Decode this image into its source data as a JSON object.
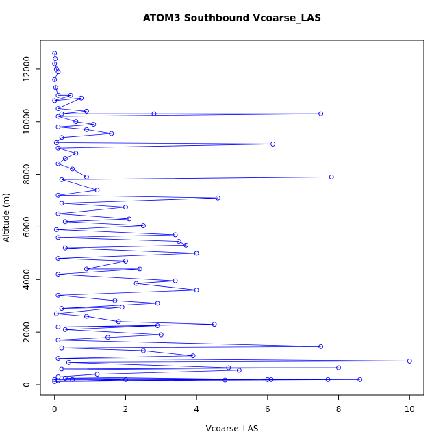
{
  "chart_data": {
    "type": "line",
    "title": "ATOM3 Southbound Vcoarse_LAS",
    "xlabel": "Vcoarse_LAS",
    "ylabel": "Altitude (m)",
    "color": "#0000ff",
    "marker": "circle",
    "x": [
      0,
      0.02,
      0,
      0.05,
      0.1,
      0,
      0.03,
      0.1,
      0.45,
      0,
      0.75,
      0.1,
      0.9,
      0.2,
      2.8,
      7.5,
      0.1,
      0.6,
      1.1,
      0.1,
      0.9,
      1.6,
      0.2,
      0.05,
      6.15,
      0.1,
      0.6,
      0.3,
      0.1,
      0.5,
      0.9,
      7.8,
      0.2,
      1.2,
      0.1,
      4.6,
      0.2,
      2.0,
      0.1,
      2.1,
      0.3,
      2.5,
      0.05,
      3.4,
      0.1,
      3.5,
      3.7,
      0.3,
      4.0,
      0.1,
      2.0,
      0.9,
      2.4,
      0.1,
      3.4,
      2.3,
      4.0,
      0.1,
      1.7,
      2.9,
      0.2,
      1.9,
      0.05,
      0.9,
      1.8,
      4.5,
      0.1,
      2.9,
      0.3,
      3.0,
      1.5,
      0.1,
      7.5,
      0.2,
      2.5,
      3.9,
      0.1,
      10,
      0.4,
      4.9,
      8,
      0.2,
      5.2,
      1.2,
      0.1,
      6.0,
      7.7,
      0.5,
      8.6,
      0.1,
      6.1,
      0.3,
      4.8,
      0,
      2,
      0
    ],
    "values": [
      12600,
      12400,
      12200,
      12000,
      11900,
      11600,
      11300,
      11000,
      11000,
      10800,
      10900,
      10500,
      10400,
      10300,
      10300,
      10300,
      10200,
      10000,
      9900,
      9800,
      9700,
      9550,
      9400,
      9200,
      9150,
      9000,
      8800,
      8600,
      8400,
      8200,
      7900,
      7900,
      7800,
      7400,
      7200,
      7100,
      6900,
      6750,
      6500,
      6300,
      6200,
      6050,
      5900,
      5700,
      5600,
      5450,
      5300,
      5200,
      5000,
      4800,
      4700,
      4400,
      4400,
      4200,
      3950,
      3850,
      3600,
      3400,
      3200,
      3100,
      2900,
      2950,
      2700,
      2600,
      2400,
      2300,
      2200,
      2250,
      2100,
      1900,
      1800,
      1700,
      1450,
      1400,
      1300,
      1100,
      1000,
      900,
      850,
      650,
      650,
      600,
      550,
      400,
      300,
      200,
      200,
      200,
      200,
      150,
      200,
      250,
      180,
      120,
      200,
      200
    ],
    "xlim": [
      -0.4,
      10.4
    ],
    "ylim": [
      -390,
      13090
    ],
    "xticks": [
      0,
      2,
      4,
      6,
      8,
      10
    ],
    "yticks": [
      0,
      2000,
      4000,
      6000,
      8000,
      10000,
      12000
    ]
  }
}
